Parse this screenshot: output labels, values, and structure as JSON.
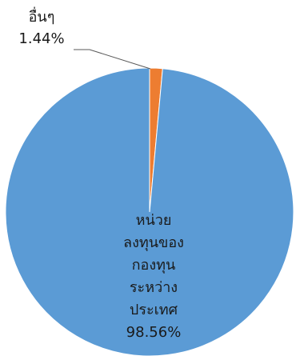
{
  "chart_data": {
    "type": "pie",
    "categories": [
      "อื่นๆ",
      "หน่วยลงทุนของกองทุนระหว่างประเทศ"
    ],
    "values": [
      1.44,
      98.56
    ],
    "colors": [
      "#ED7D31",
      "#5B9BD5"
    ],
    "data_labels": [
      {
        "lines": [
          "อื่นๆ",
          "1.44%"
        ]
      },
      {
        "lines": [
          "หน่วย",
          "ลงทุนของ",
          "กองทุน",
          "ระหว่าง",
          "ประเทศ",
          "98.56%"
        ]
      }
    ],
    "legend": "none"
  }
}
